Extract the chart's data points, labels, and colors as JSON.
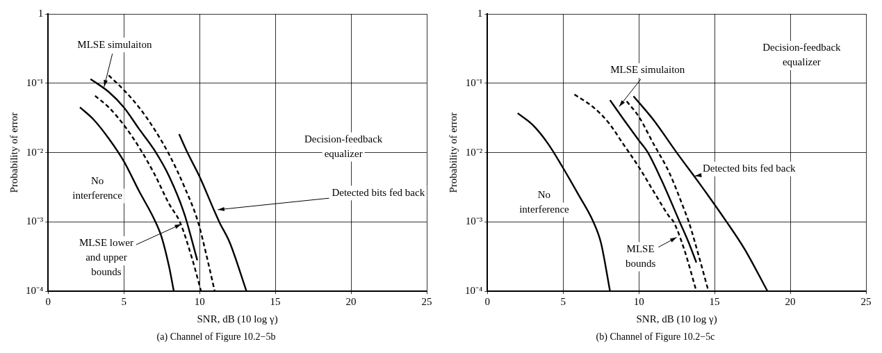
{
  "chart_data": [
    {
      "type": "line",
      "title": "(a) Channel of Figure 10.2−5b",
      "xlabel": "SNR, dB (10 log γ)",
      "ylabel": "Probability of error",
      "log": "y",
      "grid": true,
      "legend": false,
      "marker": "none",
      "xlim": [
        0,
        25
      ],
      "xticks": [
        0,
        5,
        10,
        15,
        20,
        25
      ],
      "ylim": [
        0.0001,
        1
      ],
      "yticks": [
        {
          "value": 0.0001,
          "label": "10⁻⁴"
        },
        {
          "value": 0.001,
          "label": "10⁻³"
        },
        {
          "value": 0.01,
          "label": "10⁻²"
        },
        {
          "value": 0.1,
          "label": "10⁻¹"
        },
        1
      ],
      "series": [
        {
          "color": "#000000",
          "line_style": "solid",
          "x": [
            2.1,
            3,
            4,
            5,
            6,
            7,
            7.5,
            8,
            8.3
          ],
          "values": [
            0.045,
            0.03,
            0.016,
            0.0075,
            0.0028,
            0.0011,
            0.0006,
            0.00022,
            0.0001
          ]
        },
        {
          "color": "#000000",
          "line_style": "dashed",
          "x": [
            3.1,
            4,
            5,
            6,
            7,
            8,
            8.7,
            9.5,
            10.1
          ],
          "values": [
            0.066,
            0.045,
            0.025,
            0.012,
            0.005,
            0.0018,
            0.001,
            0.0003,
            0.0001
          ]
        },
        {
          "color": "#000000",
          "line_style": "solid",
          "x": [
            2.8,
            4,
            5,
            6,
            7,
            8,
            9,
            9.85
          ],
          "values": [
            0.115,
            0.075,
            0.045,
            0.022,
            0.011,
            0.0045,
            0.0013,
            0.00028
          ]
        },
        {
          "color": "#000000",
          "line_style": "dashed",
          "x": [
            4,
            5,
            6,
            7,
            8,
            9,
            9.9,
            10.5,
            11
          ],
          "values": [
            0.13,
            0.08,
            0.045,
            0.022,
            0.0093,
            0.0032,
            0.001,
            0.0003,
            0.0001
          ]
        },
        {
          "color": "#000000",
          "line_style": "solid",
          "x": [
            8.65,
            9.2,
            10,
            11,
            11.3,
            12,
            13.1
          ],
          "values": [
            0.0185,
            0.01,
            0.0045,
            0.0014,
            0.001,
            0.0005,
            0.0001
          ]
        }
      ],
      "annotations": [
        {
          "text": "MLSE simulaiton",
          "x": 3.7,
          "y": 0.089
        },
        "No interference",
        {
          "text": "MLSE lower and upper bounds",
          "x": 8.8,
          "y": 0.00093
        },
        "Decision-feedback equalizer",
        {
          "text": "Detected bits fed back",
          "x": 11.2,
          "y": 0.0015
        }
      ]
    },
    {
      "type": "line",
      "title": "(b) Channel of Figure 10.2−5c",
      "xlabel": "SNR, dB (10 log γ)",
      "ylabel": "Probability of error",
      "log": "y",
      "grid": true,
      "legend": false,
      "marker": "none",
      "xlim": [
        0,
        25
      ],
      "xticks": [
        0,
        5,
        10,
        15,
        20,
        25
      ],
      "ylim": [
        0.0001,
        1
      ],
      "yticks": [
        {
          "value": 0.0001,
          "label": "10⁻⁴"
        },
        {
          "value": 0.001,
          "label": "10⁻³"
        },
        {
          "value": 0.01,
          "label": "10⁻²"
        },
        {
          "value": 0.1,
          "label": "10⁻¹"
        },
        1
      ],
      "series": [
        {
          "color": "#000000",
          "line_style": "solid",
          "x": [
            2,
            3,
            4,
            5,
            6,
            7,
            7.5,
            8.1
          ],
          "values": [
            0.037,
            0.025,
            0.0135,
            0.006,
            0.0025,
            0.001,
            0.0005,
            0.0001
          ]
        },
        {
          "color": "#000000",
          "line_style": "dashed",
          "x": [
            5.75,
            7,
            8,
            9,
            10,
            11,
            12,
            12.3,
            13,
            13.8
          ],
          "values": [
            0.069,
            0.045,
            0.027,
            0.013,
            0.0062,
            0.0027,
            0.0012,
            0.001,
            0.0004,
            0.0001
          ]
        },
        {
          "color": "#000000",
          "line_style": "solid",
          "x": [
            8.1,
            9,
            10,
            10.6,
            11.5,
            12.7,
            13.3,
            13.8
          ],
          "values": [
            0.057,
            0.03,
            0.015,
            0.01,
            0.004,
            0.001,
            0.0005,
            0.00026
          ]
        },
        {
          "color": "#000000",
          "line_style": "dashed",
          "x": [
            9.2,
            10,
            11,
            11.3,
            12,
            13,
            13.3,
            14,
            14.6
          ],
          "values": [
            0.055,
            0.033,
            0.013,
            0.01,
            0.0052,
            0.0015,
            0.001,
            0.0003,
            0.0001
          ]
        },
        {
          "color": "#000000",
          "line_style": "solid",
          "x": [
            9.65,
            11,
            12.5,
            14,
            15.8,
            17,
            18.5
          ],
          "values": [
            0.065,
            0.029,
            0.01,
            0.0036,
            0.001,
            0.0004,
            0.0001
          ]
        }
      ],
      "annotations": [
        {
          "text": "MLSE simulaiton",
          "x": 8.7,
          "y": 0.046
        },
        "No interference",
        {
          "text": "MLSE bounds",
          "x": 12.5,
          "y": 0.0006
        },
        "Decision-feedback equalizer",
        {
          "text": "Detected bits fed back",
          "x": 13.7,
          "y": 0.0046
        }
      ]
    }
  ]
}
